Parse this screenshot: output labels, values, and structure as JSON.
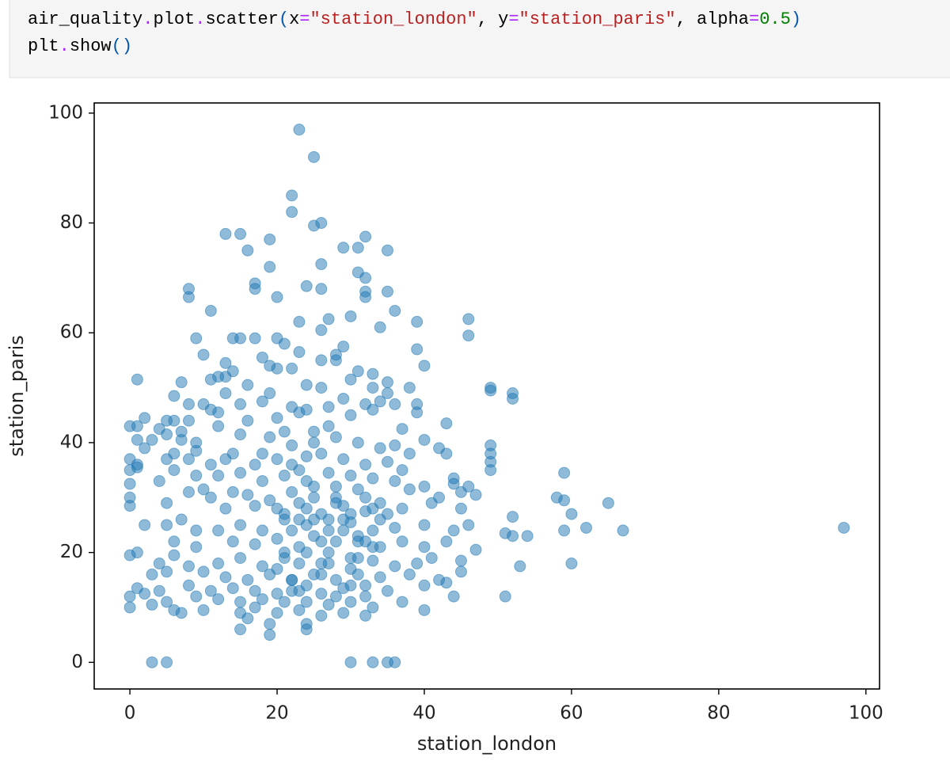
{
  "code": {
    "lines": [
      [
        {
          "text": "air_quality",
          "color": "#000000"
        },
        {
          "text": ".",
          "color": "#aa22ff"
        },
        {
          "text": "plot",
          "color": "#000000"
        },
        {
          "text": ".",
          "color": "#aa22ff"
        },
        {
          "text": "scatter",
          "color": "#000000"
        },
        {
          "text": "(",
          "color": "#0055aa"
        },
        {
          "text": "x",
          "color": "#000000"
        },
        {
          "text": "=",
          "color": "#aa22ff"
        },
        {
          "text": "\"station_london\"",
          "color": "#ba2121"
        },
        {
          "text": ", ",
          "color": "#000000"
        },
        {
          "text": "y",
          "color": "#000000"
        },
        {
          "text": "=",
          "color": "#aa22ff"
        },
        {
          "text": "\"station_paris\"",
          "color": "#ba2121"
        },
        {
          "text": ", ",
          "color": "#000000"
        },
        {
          "text": "alpha",
          "color": "#000000"
        },
        {
          "text": "=",
          "color": "#aa22ff"
        },
        {
          "text": "0.5",
          "color": "#008000"
        },
        {
          "text": ")",
          "color": "#0055aa"
        }
      ],
      [
        {
          "text": "plt",
          "color": "#000000"
        },
        {
          "text": ".",
          "color": "#aa22ff"
        },
        {
          "text": "show",
          "color": "#000000"
        },
        {
          "text": "(",
          "color": "#0055aa"
        },
        {
          "text": ")",
          "color": "#0055aa"
        }
      ]
    ]
  },
  "chart_data": {
    "type": "scatter",
    "xlabel": "station_london",
    "ylabel": "station_paris",
    "color": "#1f77b4",
    "alpha": 0.5,
    "xlim": [
      -4.85,
      101.85
    ],
    "ylim": [
      -4.85,
      101.85
    ],
    "xticks": [
      0,
      20,
      40,
      60,
      80,
      100
    ],
    "yticks": [
      0,
      20,
      40,
      60,
      80,
      100
    ],
    "x": [
      23,
      25,
      22,
      22,
      25,
      26,
      13,
      15,
      32,
      19,
      16,
      29,
      31,
      35,
      17,
      17,
      8,
      8,
      20,
      19,
      26,
      24,
      26,
      31,
      32,
      32,
      32,
      35,
      11,
      30,
      27,
      36,
      23,
      34,
      39,
      46,
      46,
      9,
      14,
      15,
      17,
      20,
      21,
      26,
      29,
      28,
      39,
      10,
      18,
      23,
      26,
      28,
      40,
      13,
      19,
      20,
      22,
      14,
      31,
      33,
      1,
      7,
      11,
      12,
      13,
      16,
      24,
      30,
      33,
      35,
      49,
      49,
      52,
      52,
      6,
      8,
      13,
      19,
      26,
      38,
      35,
      10,
      11,
      12,
      15,
      18,
      24,
      29,
      32,
      34,
      36,
      39,
      39,
      2,
      5,
      6,
      8,
      12,
      16,
      20,
      22,
      23,
      27,
      30,
      33,
      4,
      5,
      7,
      0,
      1,
      1,
      3,
      9,
      15,
      19,
      21,
      25,
      27,
      37,
      40,
      43,
      2,
      6,
      7,
      9,
      14,
      18,
      22,
      25,
      28,
      31,
      34,
      36,
      38,
      42,
      43,
      49,
      49,
      0,
      1,
      5,
      8,
      11,
      13,
      17,
      20,
      22,
      24,
      26,
      29,
      32,
      35,
      37,
      0,
      1,
      6,
      9,
      12,
      15,
      18,
      21,
      23,
      27,
      30,
      33,
      36,
      40,
      44,
      49,
      49,
      0,
      4,
      8,
      10,
      14,
      16,
      19,
      22,
      25,
      28,
      31,
      34,
      38,
      44,
      45,
      46,
      47,
      59,
      0,
      0,
      5,
      11,
      13,
      17,
      20,
      23,
      26,
      29,
      32,
      35,
      37,
      41,
      42,
      45,
      58,
      59,
      60,
      65,
      2,
      5,
      7,
      9,
      12,
      15,
      18,
      21,
      24,
      27,
      30,
      33,
      36,
      40,
      44,
      46,
      52,
      51,
      52,
      54,
      59,
      62,
      67,
      97,
      6,
      9,
      14,
      17,
      20,
      23,
      25,
      28,
      31,
      34,
      37,
      40,
      43,
      47,
      0,
      1,
      4,
      6,
      8,
      12,
      15,
      18,
      21,
      24,
      27,
      30,
      33,
      36,
      39,
      41,
      45,
      53,
      60,
      3,
      5,
      10,
      13,
      16,
      19,
      22,
      25,
      28,
      31,
      34,
      38,
      42,
      45,
      1,
      4,
      8,
      11,
      14,
      17,
      20,
      23,
      26,
      29,
      32,
      35,
      40,
      43,
      0,
      2,
      5,
      9,
      12,
      15,
      18,
      21,
      24,
      27,
      30,
      33,
      37,
      44,
      51,
      0,
      3,
      6,
      7,
      10,
      15,
      17,
      20,
      23,
      26,
      29,
      32,
      40,
      16,
      19,
      24,
      15,
      19,
      24,
      3,
      5,
      30,
      33,
      35,
      36,
      21,
      22,
      23,
      24,
      25,
      26,
      27,
      28,
      29,
      30,
      31,
      32,
      33,
      21,
      23,
      25,
      27,
      29,
      31,
      33,
      22,
      24,
      26,
      28,
      30,
      32,
      20,
      22,
      24,
      26,
      28,
      30,
      32,
      34
    ],
    "values": [
      97,
      92,
      85,
      82,
      79.5,
      80,
      78,
      78,
      77.5,
      77,
      75,
      75.5,
      75.5,
      75,
      69,
      68,
      68,
      66.5,
      66.5,
      72,
      72.5,
      68.5,
      68,
      71,
      70,
      67.5,
      66.5,
      67.5,
      64,
      63,
      62.5,
      64,
      62,
      61,
      62,
      62.5,
      59.5,
      59,
      59,
      59,
      59,
      59,
      58,
      60.5,
      57.5,
      56,
      57,
      56,
      55.5,
      56.5,
      55,
      55,
      54,
      54.5,
      54,
      53.5,
      53.5,
      53,
      53,
      52.5,
      51.5,
      51,
      51.5,
      52,
      52,
      50.5,
      50.5,
      51.5,
      50,
      51,
      50,
      49.5,
      49,
      48,
      48.5,
      47,
      49,
      49,
      50,
      50,
      49,
      47,
      46,
      45.5,
      47,
      47.5,
      46,
      48,
      47,
      47.5,
      47,
      47,
      45.5,
      44.5,
      44,
      44,
      44,
      43,
      44,
      44.5,
      46.5,
      45.5,
      46.5,
      45,
      46,
      42.5,
      41.5,
      42,
      43,
      43,
      40.5,
      40.5,
      40,
      41.5,
      41,
      42,
      42,
      43,
      42.5,
      40.5,
      43.5,
      39,
      38,
      40.5,
      38.5,
      38,
      38,
      39.5,
      40,
      41,
      40,
      39,
      39.5,
      38,
      39,
      38,
      39.5,
      38,
      37,
      36,
      37,
      37,
      36,
      37,
      36,
      37,
      36,
      37.5,
      38,
      37,
      36,
      36.5,
      35,
      35,
      35.5,
      35,
      34,
      34,
      34.5,
      33,
      34,
      35,
      34.5,
      34,
      33.5,
      33,
      32,
      33.5,
      36.5,
      35,
      32.5,
      33,
      31,
      31.5,
      31,
      30.5,
      29.5,
      31,
      32,
      30,
      31.5,
      29,
      31.5,
      32.5,
      31,
      32,
      30.5,
      34.5,
      30,
      28.5,
      29,
      30,
      28,
      28.5,
      28,
      29,
      27,
      28.5,
      27.5,
      27,
      28,
      29,
      30,
      28,
      30,
      29.5,
      27,
      29,
      25,
      25,
      26,
      24,
      24,
      25,
      24,
      26,
      25,
      24,
      25.5,
      24,
      24.5,
      25,
      24,
      25,
      26.5,
      23.5,
      23,
      23,
      24,
      24.5,
      24,
      24.5,
      22,
      21,
      22,
      21.5,
      22.5,
      21,
      23,
      22,
      22,
      21,
      22,
      21,
      22,
      20.5,
      19.5,
      20,
      18,
      19.5,
      17.5,
      18,
      19,
      17.5,
      19,
      20,
      18,
      19,
      18.5,
      17.5,
      18,
      19,
      18.5,
      17.5,
      18,
      16,
      16.5,
      16.5,
      15.5,
      15,
      16,
      15,
      16,
      15,
      16,
      15.5,
      16,
      15,
      16.5,
      13.5,
      13,
      14,
      13,
      13.5,
      13,
      12.5,
      13,
      12.5,
      13.5,
      12,
      13,
      14,
      14.5,
      12,
      12.5,
      11,
      12,
      11.5,
      11,
      11.5,
      11,
      11,
      10.5,
      11,
      10,
      11,
      12,
      12,
      10,
      10.5,
      9.5,
      9,
      9.5,
      9,
      10,
      9,
      9.5,
      8.5,
      9,
      8.5,
      9.5,
      8,
      7,
      7,
      6,
      5,
      6,
      0,
      0,
      0,
      0,
      0,
      0,
      27,
      24,
      26,
      28,
      30,
      22,
      26,
      29,
      24,
      27,
      23,
      30,
      28,
      20,
      18,
      26,
      20,
      26,
      19,
      21,
      15,
      33,
      18,
      32,
      14,
      22,
      17,
      13,
      14,
      16,
      12,
      17,
      14,
      26
    ]
  }
}
